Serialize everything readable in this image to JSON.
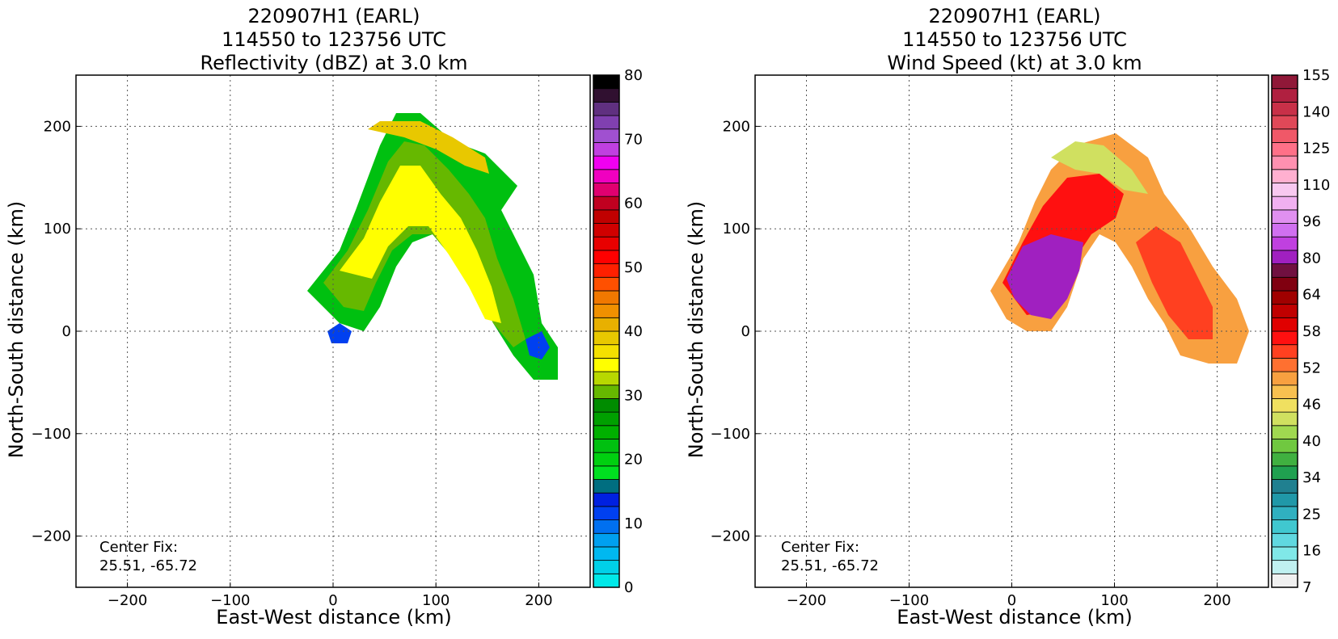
{
  "chart_data": [
    {
      "type": "heatmap",
      "title_lines": [
        "220907H1 (EARL)",
        "114550 to 123756 UTC",
        "Reflectivity (dBZ) at 3.0 km"
      ],
      "xlabel": "East-West distance (km)",
      "ylabel": "North-South distance (km)",
      "xlim": [
        -250,
        250
      ],
      "ylim": [
        -250,
        250
      ],
      "x_ticks": [
        -200,
        -100,
        0,
        100,
        200
      ],
      "y_ticks": [
        -200,
        -100,
        0,
        100,
        200
      ],
      "grid": true,
      "annotation_lines": [
        "Center Fix:",
        "25.51, -65.72"
      ],
      "colorbar": {
        "label_values": [
          "0",
          "10",
          "20",
          "30",
          "40",
          "50",
          "60",
          "70",
          "80"
        ],
        "colors": [
          "#00e8e8",
          "#00d0e8",
          "#00b8f0",
          "#00a0f0",
          "#0070f0",
          "#0040f0",
          "#0020e0",
          "#006e80",
          "#00e020",
          "#00d010",
          "#00c010",
          "#00b000",
          "#00a000",
          "#008c00",
          "#66b800",
          "#b8d800",
          "#ffff00",
          "#f4e000",
          "#e8c800",
          "#e8b000",
          "#f09000",
          "#f07800",
          "#ff5000",
          "#ff2000",
          "#ff0000",
          "#e80000",
          "#d00000",
          "#c00000",
          "#c00020",
          "#e00070",
          "#f000c0",
          "#f000f0",
          "#c040e0",
          "#a050d0",
          "#8040b0",
          "#603080",
          "#301030",
          "#000000"
        ]
      },
      "data_description_points": [
        {
          "x": -20,
          "y": 30,
          "v": 30
        },
        {
          "x": 40,
          "y": 120,
          "v": 38
        },
        {
          "x": 100,
          "y": 80,
          "v": 40
        },
        {
          "x": 160,
          "y": 20,
          "v": 36
        }
      ]
    },
    {
      "type": "heatmap",
      "title_lines": [
        "220907H1 (EARL)",
        "114550 to 123756 UTC",
        "Wind Speed (kt) at 3.0 km"
      ],
      "xlabel": "East-West distance (km)",
      "ylabel": "North-South distance (km)",
      "xlim": [
        -250,
        250
      ],
      "ylim": [
        -250,
        250
      ],
      "x_ticks": [
        -200,
        -100,
        0,
        100,
        200
      ],
      "y_ticks": [
        -200,
        -100,
        0,
        100,
        200
      ],
      "grid": true,
      "annotation_lines": [
        "Center Fix:",
        "25.51, -65.72"
      ],
      "colorbar": {
        "label_values": [
          "7",
          "16",
          "25",
          "34",
          "40",
          "46",
          "52",
          "58",
          "64",
          "80",
          "96",
          "110",
          "125",
          "140",
          "155"
        ],
        "colors": [
          "#f0f0f0",
          "#c0f0f0",
          "#80e8e8",
          "#60d8e0",
          "#40c8d0",
          "#30b0c0",
          "#2098a8",
          "#208090",
          "#20a050",
          "#40b040",
          "#70c840",
          "#a0d850",
          "#d0e060",
          "#f0e060",
          "#f8c050",
          "#f8a040",
          "#ff7030",
          "#ff4020",
          "#ff1010",
          "#e00000",
          "#c00000",
          "#a00000",
          "#800010",
          "#701040",
          "#a020c0",
          "#c040e0",
          "#d070f0",
          "#e090f0",
          "#f0b0f0",
          "#f8c8f0",
          "#ffb0d0",
          "#ff90b0",
          "#ff7088",
          "#f05868",
          "#e04858",
          "#c83048",
          "#b02040",
          "#901838"
        ]
      },
      "data_description_points": [
        {
          "x": 20,
          "y": 60,
          "v": 70
        },
        {
          "x": 60,
          "y": 150,
          "v": 50
        },
        {
          "x": 150,
          "y": 60,
          "v": 55
        }
      ]
    }
  ]
}
